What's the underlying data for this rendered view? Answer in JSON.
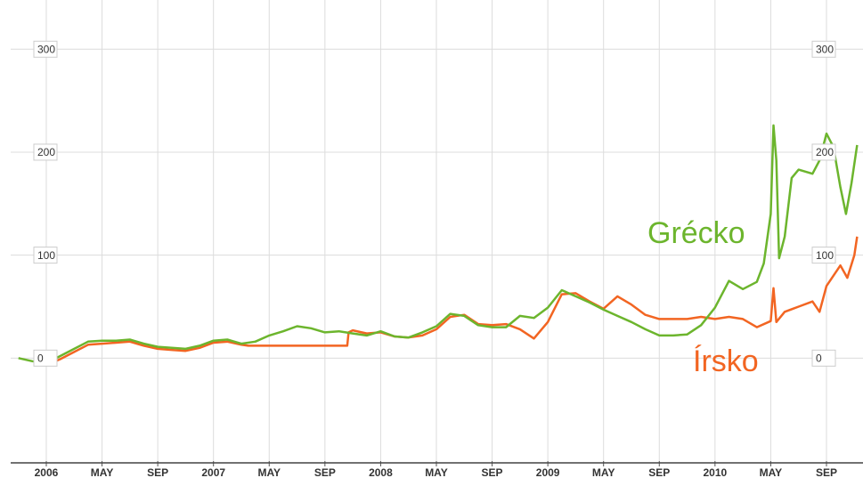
{
  "chart_data": {
    "type": "line",
    "xlim": [
      -2,
      58.2
    ],
    "xticks": [
      {
        "value": 0,
        "label": "2006"
      },
      {
        "value": 4,
        "label": "MAY"
      },
      {
        "value": 8,
        "label": "SEP"
      },
      {
        "value": 12,
        "label": "2007"
      },
      {
        "value": 16,
        "label": "MAY"
      },
      {
        "value": 20,
        "label": "SEP"
      },
      {
        "value": 24,
        "label": "2008"
      },
      {
        "value": 28,
        "label": "MAY"
      },
      {
        "value": 32,
        "label": "SEP"
      },
      {
        "value": 36,
        "label": "2009"
      },
      {
        "value": 40,
        "label": "MAY"
      },
      {
        "value": 44,
        "label": "SEP"
      },
      {
        "value": 48,
        "label": "2010"
      },
      {
        "value": 52,
        "label": "MAY"
      },
      {
        "value": 56,
        "label": "SEP"
      }
    ],
    "ylim": [
      -100,
      340
    ],
    "yticks": [
      0,
      100,
      200,
      300
    ],
    "grid": true,
    "series": [
      {
        "name": "Grécko",
        "color": "#6cb52d",
        "x": [
          -2,
          -1,
          0,
          1,
          2,
          3,
          4,
          5,
          6,
          7,
          8,
          9,
          10,
          11,
          12,
          13,
          14,
          15,
          16,
          17,
          18,
          19,
          20,
          21,
          22,
          23,
          24,
          25,
          26,
          27,
          28,
          29,
          30,
          31,
          32,
          33,
          34,
          35,
          36,
          37,
          38,
          39,
          40,
          41,
          42,
          43,
          44,
          45,
          46,
          47,
          48,
          49,
          50,
          51,
          51.5,
          52,
          52.2,
          52.4,
          52.6,
          53,
          53.5,
          54,
          55,
          55.5,
          56,
          56.5,
          57,
          57.4,
          57.8,
          58.2
        ],
        "values": [
          0,
          -3,
          -5,
          2,
          9,
          16,
          17,
          17,
          18,
          14,
          11,
          10,
          9,
          12,
          17,
          18,
          14,
          16,
          22,
          26,
          31,
          29,
          25,
          26,
          24,
          22,
          26,
          21,
          20,
          25,
          31,
          43,
          41,
          32,
          30,
          30,
          41,
          39,
          49,
          66,
          60,
          54,
          47,
          41,
          35,
          28,
          22,
          22,
          23,
          32,
          49,
          75,
          67,
          74,
          92,
          140,
          226,
          192,
          97,
          118,
          175,
          183,
          179,
          192,
          218,
          205,
          166,
          140,
          170,
          207
        ]
      },
      {
        "name": "Írsko",
        "color": "#f26522",
        "x": [
          0,
          1,
          2,
          3,
          4,
          5,
          6,
          7,
          8,
          9,
          10,
          11,
          12,
          13,
          14,
          14.5,
          21.6,
          21.7,
          22,
          23,
          24,
          25,
          26,
          27,
          28,
          29,
          30,
          31,
          32,
          33,
          34,
          35,
          36,
          37,
          38,
          39,
          40,
          41,
          42,
          43,
          44,
          45,
          46,
          47,
          48,
          49,
          50,
          51,
          52,
          52.2,
          52.4,
          53,
          54,
          55,
          55.5,
          56,
          57,
          57.5,
          58,
          58.2
        ],
        "values": [
          -7,
          -1,
          6,
          13,
          14,
          15,
          16,
          12,
          9,
          8,
          7,
          10,
          15,
          16,
          13,
          12,
          12,
          25,
          27,
          24,
          25,
          21,
          20,
          22,
          28,
          40,
          42,
          33,
          32,
          33,
          28,
          19,
          35,
          62,
          63,
          55,
          48,
          60,
          52,
          42,
          38,
          38,
          38,
          40,
          38,
          40,
          38,
          30,
          36,
          68,
          35,
          45,
          50,
          55,
          45,
          70,
          90,
          78,
          100,
          118
        ]
      }
    ]
  }
}
